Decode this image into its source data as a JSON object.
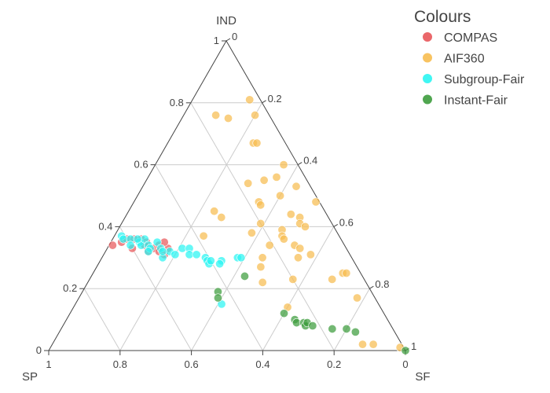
{
  "chart_data": {
    "type": "scatter",
    "subtype": "ternary",
    "title": "",
    "axes": {
      "a": {
        "label": "IND",
        "ticks": [
          0,
          0.2,
          0.4,
          0.6,
          0.8,
          1
        ]
      },
      "b": {
        "label": "SP",
        "ticks": [
          0,
          0.2,
          0.4,
          0.6,
          0.8,
          1
        ]
      },
      "c": {
        "label": "SF",
        "ticks": [
          0,
          0.2,
          0.4,
          0.6,
          0.8,
          1
        ]
      }
    },
    "grid": true,
    "legend": {
      "title": "Colours",
      "position": "top-right"
    },
    "series": [
      {
        "name": "COMPAS",
        "color": "#e8575a",
        "points": [
          {
            "a": 0.34,
            "b": 0.65,
            "c": 0.01
          },
          {
            "a": 0.35,
            "b": 0.62,
            "c": 0.03
          },
          {
            "a": 0.36,
            "b": 0.6,
            "c": 0.04
          },
          {
            "a": 0.33,
            "b": 0.6,
            "c": 0.07
          },
          {
            "a": 0.36,
            "b": 0.56,
            "c": 0.08
          },
          {
            "a": 0.35,
            "b": 0.55,
            "c": 0.1
          },
          {
            "a": 0.34,
            "b": 0.56,
            "c": 0.1
          },
          {
            "a": 0.33,
            "b": 0.54,
            "c": 0.13
          },
          {
            "a": 0.34,
            "b": 0.52,
            "c": 0.14
          },
          {
            "a": 0.32,
            "b": 0.53,
            "c": 0.15
          },
          {
            "a": 0.31,
            "b": 0.52,
            "c": 0.17
          },
          {
            "a": 0.33,
            "b": 0.5,
            "c": 0.17
          },
          {
            "a": 0.36,
            "b": 0.58,
            "c": 0.06
          },
          {
            "a": 0.32,
            "b": 0.56,
            "c": 0.12
          },
          {
            "a": 0.35,
            "b": 0.5,
            "c": 0.15
          }
        ]
      },
      {
        "name": "AIF360",
        "color": "#f7bd50",
        "points": [
          {
            "a": 0.81,
            "b": 0.03,
            "c": 0.16
          },
          {
            "a": 0.76,
            "b": 0.15,
            "c": 0.09
          },
          {
            "a": 0.75,
            "b": 0.12,
            "c": 0.13
          },
          {
            "a": 0.76,
            "b": 0.04,
            "c": 0.2
          },
          {
            "a": 0.67,
            "b": 0.09,
            "c": 0.24
          },
          {
            "a": 0.67,
            "b": 0.08,
            "c": 0.25
          },
          {
            "a": 0.6,
            "b": 0.04,
            "c": 0.36
          },
          {
            "a": 0.56,
            "b": 0.08,
            "c": 0.36
          },
          {
            "a": 0.54,
            "b": 0.17,
            "c": 0.29
          },
          {
            "a": 0.55,
            "b": 0.12,
            "c": 0.33
          },
          {
            "a": 0.53,
            "b": 0.04,
            "c": 0.43
          },
          {
            "a": 0.5,
            "b": 0.1,
            "c": 0.4
          },
          {
            "a": 0.48,
            "b": 0.17,
            "c": 0.35
          },
          {
            "a": 0.48,
            "b": 0.01,
            "c": 0.51
          },
          {
            "a": 0.47,
            "b": 0.17,
            "c": 0.36
          },
          {
            "a": 0.45,
            "b": 0.31,
            "c": 0.24
          },
          {
            "a": 0.44,
            "b": 0.1,
            "c": 0.46
          },
          {
            "a": 0.43,
            "b": 0.08,
            "c": 0.49
          },
          {
            "a": 0.43,
            "b": 0.3,
            "c": 0.27
          },
          {
            "a": 0.41,
            "b": 0.09,
            "c": 0.5
          },
          {
            "a": 0.41,
            "b": 0.2,
            "c": 0.39
          },
          {
            "a": 0.4,
            "b": 0.08,
            "c": 0.52
          },
          {
            "a": 0.39,
            "b": 0.15,
            "c": 0.46
          },
          {
            "a": 0.38,
            "b": 0.24,
            "c": 0.38
          },
          {
            "a": 0.37,
            "b": 0.38,
            "c": 0.25
          },
          {
            "a": 0.37,
            "b": 0.16,
            "c": 0.47
          },
          {
            "a": 0.36,
            "b": 0.16,
            "c": 0.48
          },
          {
            "a": 0.34,
            "b": 0.14,
            "c": 0.52
          },
          {
            "a": 0.34,
            "b": 0.21,
            "c": 0.45
          },
          {
            "a": 0.33,
            "b": 0.13,
            "c": 0.54
          },
          {
            "a": 0.31,
            "b": 0.11,
            "c": 0.58
          },
          {
            "a": 0.3,
            "b": 0.25,
            "c": 0.45
          },
          {
            "a": 0.3,
            "b": 0.15,
            "c": 0.55
          },
          {
            "a": 0.27,
            "b": 0.27,
            "c": 0.46
          },
          {
            "a": 0.25,
            "b": 0.05,
            "c": 0.7
          },
          {
            "a": 0.25,
            "b": 0.04,
            "c": 0.71
          },
          {
            "a": 0.23,
            "b": 0.2,
            "c": 0.57
          },
          {
            "a": 0.23,
            "b": 0.09,
            "c": 0.68
          },
          {
            "a": 0.22,
            "b": 0.29,
            "c": 0.49
          },
          {
            "a": 0.17,
            "b": 0.05,
            "c": 0.78
          },
          {
            "a": 0.14,
            "b": 0.26,
            "c": 0.6
          },
          {
            "a": 0.02,
            "b": 0.11,
            "c": 0.87
          },
          {
            "a": 0.02,
            "b": 0.08,
            "c": 0.9
          },
          {
            "a": 0.01,
            "b": 0.01,
            "c": 0.98
          }
        ]
      },
      {
        "name": "Subgroup-Fair",
        "color": "#2bf5f2",
        "points": [
          {
            "a": 0.37,
            "b": 0.61,
            "c": 0.02
          },
          {
            "a": 0.36,
            "b": 0.61,
            "c": 0.03
          },
          {
            "a": 0.36,
            "b": 0.59,
            "c": 0.05
          },
          {
            "a": 0.34,
            "b": 0.6,
            "c": 0.06
          },
          {
            "a": 0.35,
            "b": 0.57,
            "c": 0.08
          },
          {
            "a": 0.34,
            "b": 0.57,
            "c": 0.09
          },
          {
            "a": 0.36,
            "b": 0.55,
            "c": 0.09
          },
          {
            "a": 0.34,
            "b": 0.55,
            "c": 0.11
          },
          {
            "a": 0.33,
            "b": 0.55,
            "c": 0.12
          },
          {
            "a": 0.32,
            "b": 0.56,
            "c": 0.12
          },
          {
            "a": 0.35,
            "b": 0.52,
            "c": 0.13
          },
          {
            "a": 0.33,
            "b": 0.52,
            "c": 0.15
          },
          {
            "a": 0.3,
            "b": 0.53,
            "c": 0.17
          },
          {
            "a": 0.32,
            "b": 0.5,
            "c": 0.18
          },
          {
            "a": 0.31,
            "b": 0.49,
            "c": 0.2
          },
          {
            "a": 0.33,
            "b": 0.46,
            "c": 0.21
          },
          {
            "a": 0.33,
            "b": 0.44,
            "c": 0.23
          },
          {
            "a": 0.31,
            "b": 0.45,
            "c": 0.24
          },
          {
            "a": 0.31,
            "b": 0.43,
            "c": 0.26
          },
          {
            "a": 0.3,
            "b": 0.41,
            "c": 0.29
          },
          {
            "a": 0.29,
            "b": 0.41,
            "c": 0.3
          },
          {
            "a": 0.28,
            "b": 0.41,
            "c": 0.31
          },
          {
            "a": 0.29,
            "b": 0.4,
            "c": 0.31
          },
          {
            "a": 0.29,
            "b": 0.37,
            "c": 0.34
          },
          {
            "a": 0.28,
            "b": 0.38,
            "c": 0.34
          },
          {
            "a": 0.3,
            "b": 0.32,
            "c": 0.38
          },
          {
            "a": 0.3,
            "b": 0.31,
            "c": 0.39
          },
          {
            "a": 0.15,
            "b": 0.44,
            "c": 0.41
          },
          {
            "a": 0.36,
            "b": 0.57,
            "c": 0.07
          },
          {
            "a": 0.32,
            "b": 0.52,
            "c": 0.16
          }
        ]
      },
      {
        "name": "Instant-Fair",
        "color": "#3d9c3d",
        "points": [
          {
            "a": 0.24,
            "b": 0.33,
            "c": 0.43
          },
          {
            "a": 0.19,
            "b": 0.43,
            "c": 0.38
          },
          {
            "a": 0.17,
            "b": 0.44,
            "c": 0.39
          },
          {
            "a": 0.12,
            "b": 0.28,
            "c": 0.6
          },
          {
            "a": 0.1,
            "b": 0.26,
            "c": 0.64
          },
          {
            "a": 0.09,
            "b": 0.26,
            "c": 0.65
          },
          {
            "a": 0.09,
            "b": 0.24,
            "c": 0.67
          },
          {
            "a": 0.08,
            "b": 0.24,
            "c": 0.68
          },
          {
            "a": 0.09,
            "b": 0.23,
            "c": 0.68
          },
          {
            "a": 0.08,
            "b": 0.22,
            "c": 0.7
          },
          {
            "a": 0.07,
            "b": 0.17,
            "c": 0.76
          },
          {
            "a": 0.07,
            "b": 0.13,
            "c": 0.8
          },
          {
            "a": 0.06,
            "b": 0.11,
            "c": 0.83
          },
          {
            "a": 0.0,
            "b": 0.0,
            "c": 1.0
          }
        ]
      }
    ]
  }
}
